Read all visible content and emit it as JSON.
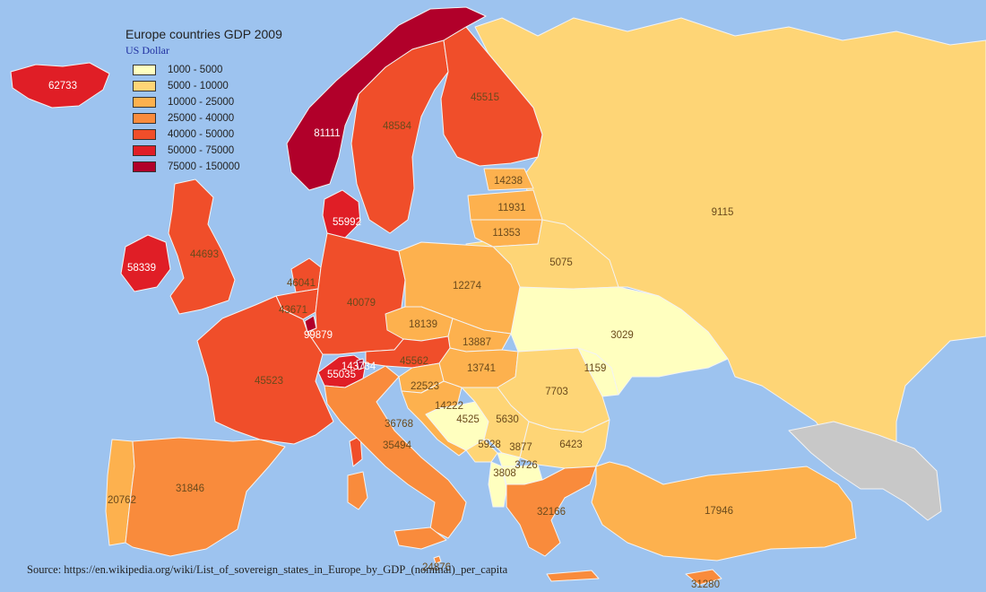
{
  "title": "Europe countries GDP 2009",
  "subtitle": "US Dollar",
  "source": "Source: https://en.wikipedia.org/wiki/List_of_sovereign_states_in_Europe_by_GDP_(nominal)_per_capita",
  "colors": {
    "sea": "#9dc3ef",
    "nodata": "#c8c8c8",
    "bins": [
      "#ffffbf",
      "#fed576",
      "#fdb14e",
      "#f98b3c",
      "#f04e2a",
      "#e01e26",
      "#b1002a"
    ]
  },
  "legend": [
    {
      "label": "1000 - 5000"
    },
    {
      "label": "5000 - 10000"
    },
    {
      "label": "10000 - 25000"
    },
    {
      "label": "25000 - 40000"
    },
    {
      "label": "40000 - 50000"
    },
    {
      "label": "50000 - 75000"
    },
    {
      "label": "75000 - 150000"
    }
  ],
  "chart_data": {
    "type": "choropleth",
    "value_unit": "US Dollar",
    "bins": [
      [
        1000,
        5000
      ],
      [
        5000,
        10000
      ],
      [
        10000,
        25000
      ],
      [
        25000,
        40000
      ],
      [
        40000,
        50000
      ],
      [
        50000,
        75000
      ],
      [
        75000,
        150000
      ]
    ],
    "labels": [
      {
        "id": "iceland",
        "value": 62733
      },
      {
        "id": "norway",
        "value": 81111
      },
      {
        "id": "sweden",
        "value": 48584
      },
      {
        "id": "finland",
        "value": 45515
      },
      {
        "id": "russia",
        "value": 9115
      },
      {
        "id": "estonia",
        "value": 14238
      },
      {
        "id": "latvia",
        "value": 11931
      },
      {
        "id": "lithuania",
        "value": 11353
      },
      {
        "id": "belarus",
        "value": 5075
      },
      {
        "id": "denmark",
        "value": 55992
      },
      {
        "id": "ireland",
        "value": 58339
      },
      {
        "id": "uk",
        "value": 44693
      },
      {
        "id": "netherlands",
        "value": 46041
      },
      {
        "id": "belgium",
        "value": 43671
      },
      {
        "id": "luxembourg",
        "value": 99879
      },
      {
        "id": "germany",
        "value": 40079
      },
      {
        "id": "poland",
        "value": 12274
      },
      {
        "id": "czechia",
        "value": 18139
      },
      {
        "id": "slovakia",
        "value": 13887
      },
      {
        "id": "ukraine",
        "value": 3029
      },
      {
        "id": "austria",
        "value": 45562
      },
      {
        "id": "liechtenstein",
        "value": 143734
      },
      {
        "id": "switzerland",
        "value": 55035
      },
      {
        "id": "hungary",
        "value": 13741
      },
      {
        "id": "moldova",
        "value": 1159
      },
      {
        "id": "slovenia",
        "value": 22523
      },
      {
        "id": "croatia",
        "value": 14222
      },
      {
        "id": "bosnia",
        "value": 4525
      },
      {
        "id": "serbia",
        "value": 5630
      },
      {
        "id": "romania",
        "value": 7703
      },
      {
        "id": "montenegro",
        "value": 5928
      },
      {
        "id": "kosovo",
        "value": 3877
      },
      {
        "id": "bulgaria",
        "value": 6423
      },
      {
        "id": "albania",
        "value": 3808
      },
      {
        "id": "macedonia",
        "value": 3726
      },
      {
        "id": "france",
        "value": 45523
      },
      {
        "id": "monaco",
        "value": 36768
      },
      {
        "id": "italy",
        "value": 35494
      },
      {
        "id": "portugal",
        "value": 20762
      },
      {
        "id": "spain",
        "value": 31846
      },
      {
        "id": "greece",
        "value": 32166
      },
      {
        "id": "turkey",
        "value": 17946
      },
      {
        "id": "malta",
        "value": 24876
      },
      {
        "id": "cyprus",
        "value": 31280
      }
    ]
  }
}
